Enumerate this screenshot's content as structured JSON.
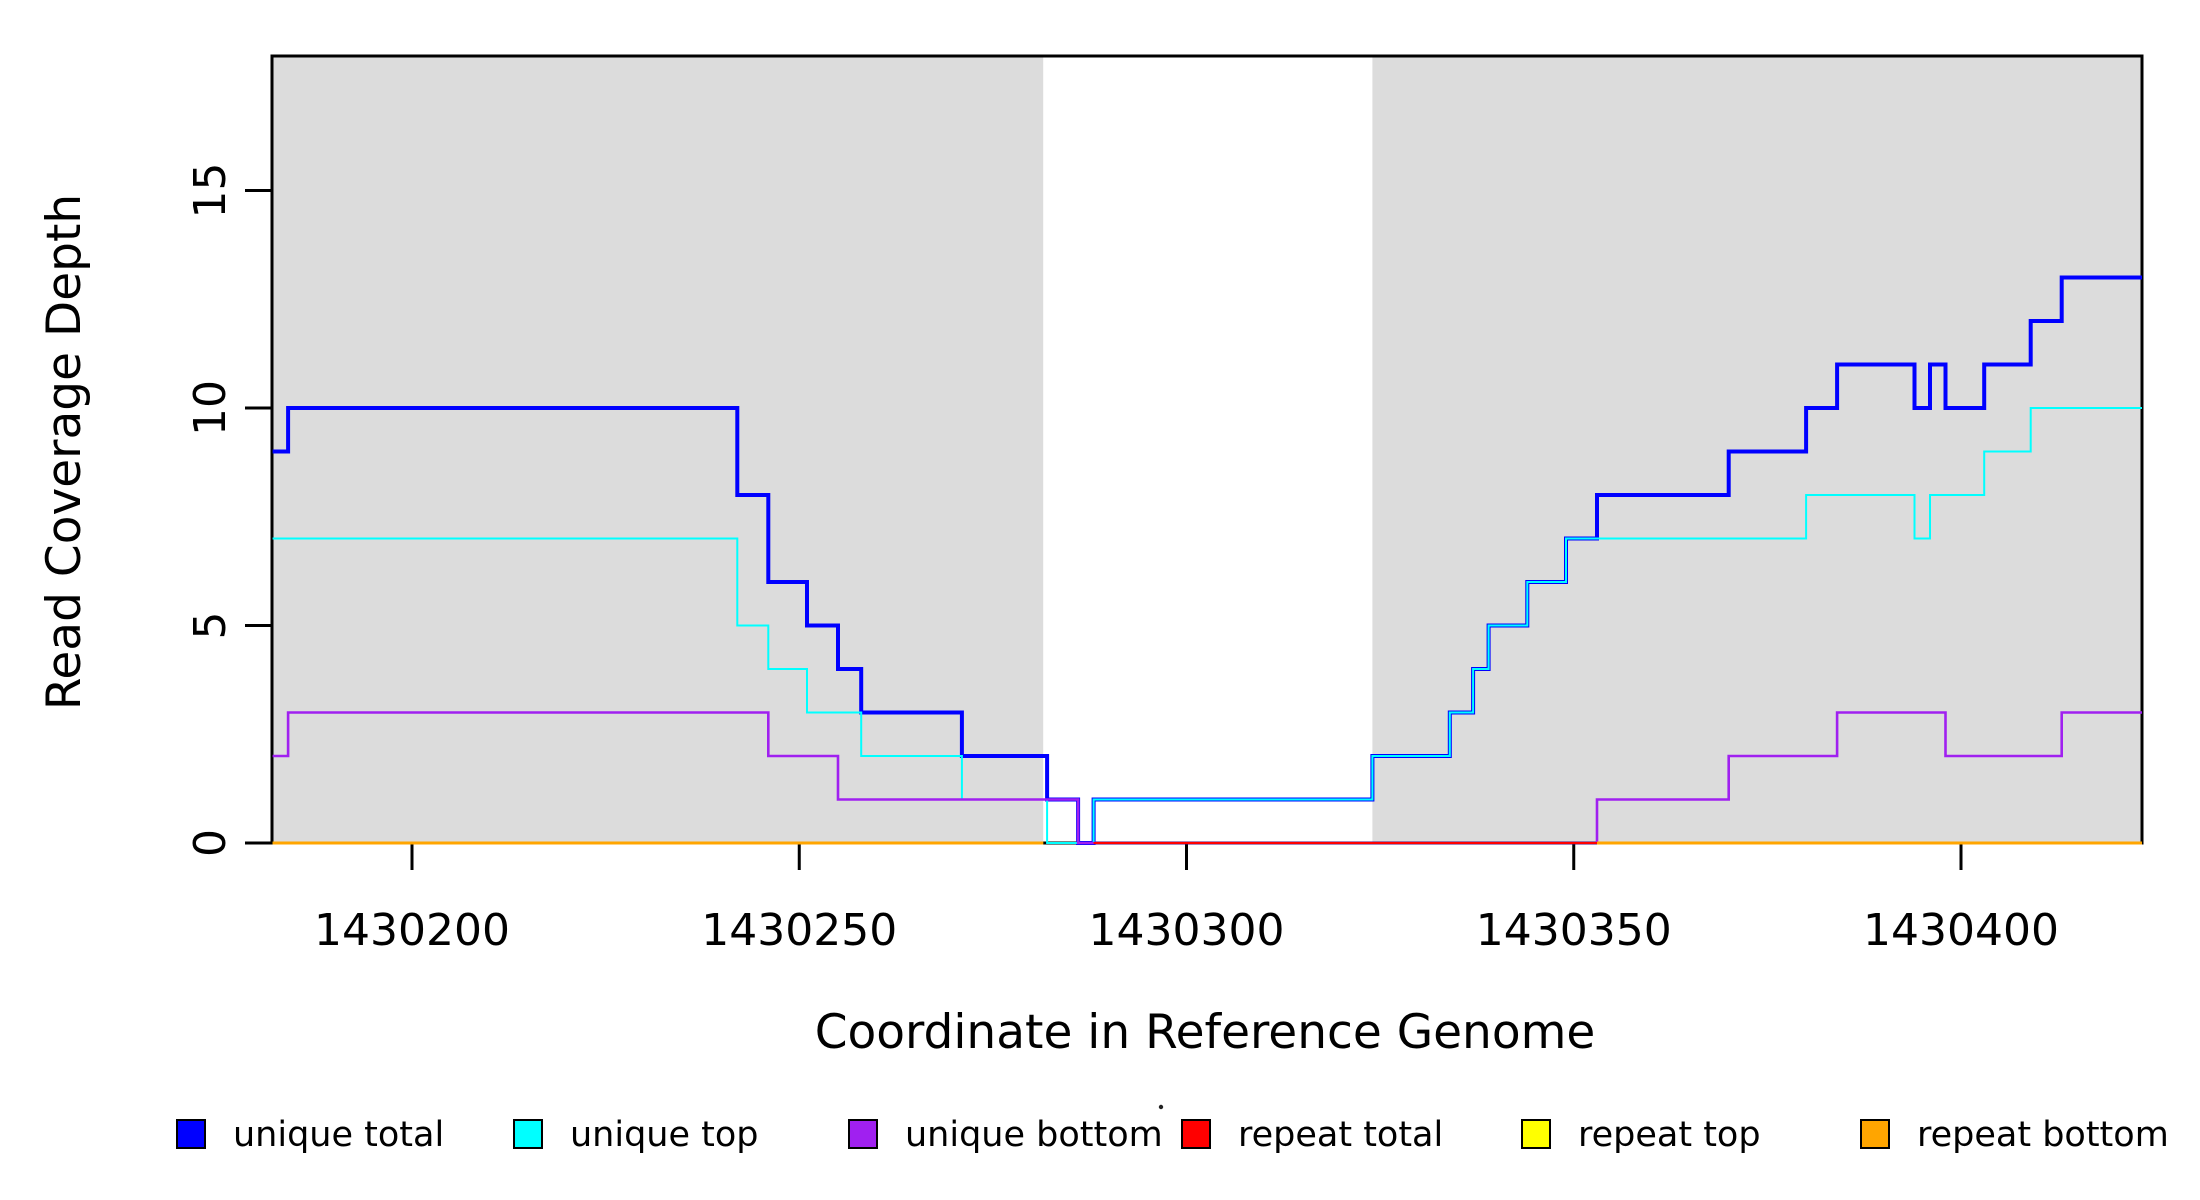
{
  "chart_data": {
    "type": "line",
    "subtype": "step-after-coverage",
    "title": "",
    "xlabel": "Coordinate in Reference Genome",
    "ylabel": "Read Coverage Depth",
    "xlim": [
      1430181.9,
      1430423.5
    ],
    "ylim": [
      0,
      18.1
    ],
    "x_ticks": [
      1430200,
      1430250,
      1430300,
      1430350,
      1430400
    ],
    "y_ticks": [
      0,
      5,
      10,
      15
    ],
    "grid": false,
    "background_color": "#ffffff",
    "region_color": "#dcdcdc",
    "shaded_regions": [
      {
        "x0": 1430181.9,
        "x1": 1430281.5
      },
      {
        "x0": 1430324.0,
        "x1": 1430423.5
      }
    ],
    "series": [
      {
        "name": "unique total",
        "color": "#0000ff",
        "lwd": 4,
        "segments": [
          {
            "xend": 1430423.5,
            "points": [
              [
                1430182,
                9
              ],
              [
                1430184,
                10
              ],
              [
                1430242,
                8
              ],
              [
                1430246,
                6
              ],
              [
                1430251,
                5
              ],
              [
                1430255,
                4
              ],
              [
                1430258,
                3
              ],
              [
                1430271,
                2
              ],
              [
                1430282,
                1
              ],
              [
                1430286,
                0
              ],
              [
                1430288,
                1
              ],
              [
                1430324,
                2
              ],
              [
                1430334,
                3
              ],
              [
                1430337,
                4
              ],
              [
                1430339,
                5
              ],
              [
                1430344,
                6
              ],
              [
                1430349,
                7
              ],
              [
                1430353,
                8
              ],
              [
                1430370,
                9
              ],
              [
                1430380,
                10
              ],
              [
                1430384,
                11
              ],
              [
                1430394,
                10
              ],
              [
                1430396,
                11
              ],
              [
                1430398,
                10
              ],
              [
                1430403,
                11
              ],
              [
                1430409,
                12
              ],
              [
                1430413,
                13
              ]
            ]
          }
        ]
      },
      {
        "name": "unique top",
        "color": "#00ffff",
        "lwd": 2,
        "segments": [
          {
            "xend": 1430423.5,
            "points": [
              [
                1430182,
                7
              ],
              [
                1430242,
                5
              ],
              [
                1430246,
                4
              ],
              [
                1430251,
                3
              ],
              [
                1430258,
                2
              ],
              [
                1430271,
                1
              ],
              [
                1430282,
                0
              ],
              [
                1430288,
                1
              ],
              [
                1430324,
                2
              ],
              [
                1430334,
                3
              ],
              [
                1430337,
                4
              ],
              [
                1430339,
                5
              ],
              [
                1430344,
                6
              ],
              [
                1430349,
                7
              ],
              [
                1430380,
                8
              ],
              [
                1430394,
                7
              ],
              [
                1430396,
                8
              ],
              [
                1430403,
                9
              ],
              [
                1430409,
                10
              ]
            ]
          }
        ]
      },
      {
        "name": "unique bottom",
        "color": "#a020f0",
        "lwd": 2.6,
        "segments": [
          {
            "xend": 1430423.5,
            "points": [
              [
                1430182,
                2
              ],
              [
                1430184,
                3
              ],
              [
                1430246,
                2
              ],
              [
                1430255,
                1
              ],
              [
                1430286,
                0
              ],
              [
                1430353,
                1
              ],
              [
                1430370,
                2
              ],
              [
                1430384,
                3
              ],
              [
                1430398,
                2
              ],
              [
                1430413,
                3
              ]
            ]
          }
        ]
      },
      {
        "name": "repeat total",
        "color": "#ff0000",
        "lwd": 2,
        "segments": [
          {
            "xend": 1430423.5,
            "points": [
              [
                1430288,
                0
              ]
            ]
          }
        ]
      },
      {
        "name": "repeat top",
        "color": "#ffff00",
        "lwd": 2.6,
        "segments": [
          {
            "xend": 1430281.5,
            "points": [
              [
                1430182,
                0
              ]
            ]
          },
          {
            "xend": 1430423.5,
            "points": [
              [
                1430353,
                0
              ]
            ]
          }
        ]
      },
      {
        "name": "repeat bottom",
        "color": "#ffa500",
        "lwd": 3,
        "segments": [
          {
            "xend": 1430281.5,
            "points": [
              [
                1430182,
                0
              ]
            ]
          },
          {
            "xend": 1430423.5,
            "points": [
              [
                1430353,
                0
              ]
            ]
          }
        ]
      }
    ],
    "legend": {
      "position": "bottom",
      "items": [
        {
          "label": "unique total",
          "color": "#0000ff"
        },
        {
          "label": "unique top",
          "color": "#00ffff"
        },
        {
          "label": "unique bottom",
          "color": "#a020f0"
        },
        {
          "label": "repeat total",
          "color": "#ff0000"
        },
        {
          "label": "repeat top",
          "color": "#ffff00"
        },
        {
          "label": "repeat bottom",
          "color": "#ffa500"
        }
      ]
    }
  }
}
